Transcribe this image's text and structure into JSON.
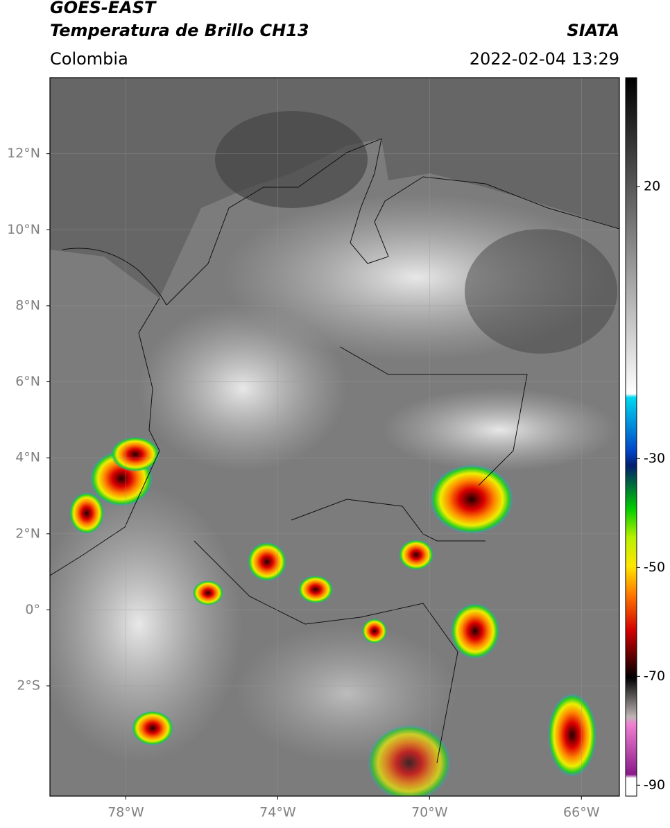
{
  "header": {
    "title": "GOES-EAST",
    "subtitle": "Temperatura de Brillo CH13",
    "region": "Colombia",
    "source": "SIATA",
    "timestamp": "2022-02-04 13:29"
  },
  "map": {
    "xlim": [
      -80,
      -65
    ],
    "ylim": [
      -4.9,
      14
    ],
    "xticks": [
      {
        "value": -78,
        "label": "78°W"
      },
      {
        "value": -74,
        "label": "74°W"
      },
      {
        "value": -70,
        "label": "70°W"
      },
      {
        "value": -66,
        "label": "66°W"
      }
    ],
    "yticks": [
      {
        "value": 12,
        "label": "12°N"
      },
      {
        "value": 10,
        "label": "10°N"
      },
      {
        "value": 8,
        "label": "8°N"
      },
      {
        "value": 6,
        "label": "6°N"
      },
      {
        "value": 4,
        "label": "4°N"
      },
      {
        "value": 2,
        "label": "2°N"
      },
      {
        "value": 0,
        "label": "0°"
      },
      {
        "value": -2,
        "label": "2°S"
      }
    ]
  },
  "colorbar": {
    "lim": [
      -92,
      40
    ],
    "ticks": [
      20,
      -30,
      -50,
      -70,
      -90
    ]
  }
}
